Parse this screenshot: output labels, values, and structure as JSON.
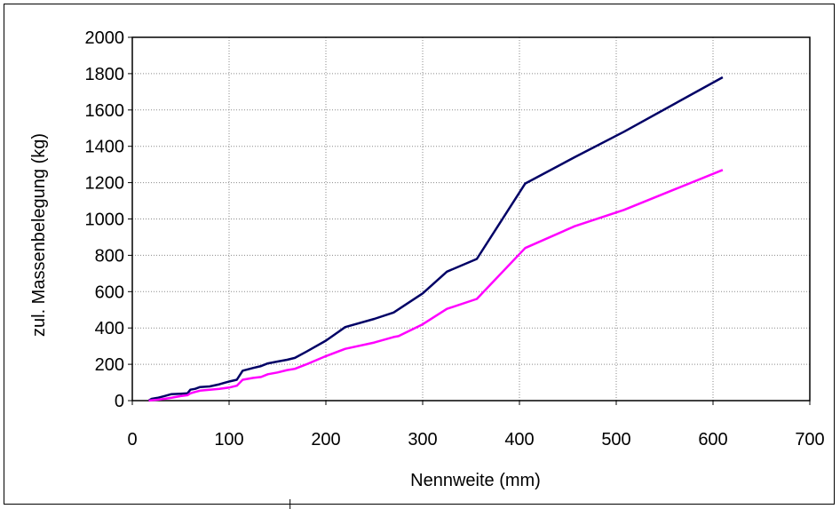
{
  "chart_data": {
    "type": "line",
    "title": "",
    "xlabel": "Nennweite (mm)",
    "ylabel": "zul. Massenbelegung (kg)",
    "xlim": [
      0,
      700
    ],
    "ylim": [
      0,
      2000
    ],
    "xticks": [
      0,
      100,
      200,
      300,
      400,
      500,
      600,
      700
    ],
    "yticks": [
      0,
      200,
      400,
      600,
      800,
      1000,
      1200,
      1400,
      1600,
      1800,
      2000
    ],
    "grid": true,
    "legend": "none",
    "series": [
      {
        "color": "#000066",
        "points": [
          [
            17,
            0
          ],
          [
            20,
            10
          ],
          [
            26,
            15
          ],
          [
            33,
            25
          ],
          [
            40,
            35
          ],
          [
            50,
            38
          ],
          [
            57,
            40
          ],
          [
            60,
            60
          ],
          [
            65,
            65
          ],
          [
            70,
            75
          ],
          [
            80,
            78
          ],
          [
            90,
            90
          ],
          [
            100,
            105
          ],
          [
            108,
            115
          ],
          [
            114,
            165
          ],
          [
            125,
            180
          ],
          [
            133,
            190
          ],
          [
            140,
            205
          ],
          [
            150,
            215
          ],
          [
            160,
            225
          ],
          [
            168,
            235
          ],
          [
            180,
            270
          ],
          [
            200,
            330
          ],
          [
            220,
            405
          ],
          [
            250,
            450
          ],
          [
            270,
            485
          ],
          [
            300,
            590
          ],
          [
            325,
            710
          ],
          [
            356,
            780
          ],
          [
            406,
            1195
          ],
          [
            457,
            1340
          ],
          [
            508,
            1480
          ],
          [
            610,
            1780
          ]
        ]
      },
      {
        "color": "#ff00ff",
        "points": [
          [
            17,
            0
          ],
          [
            20,
            2
          ],
          [
            26,
            5
          ],
          [
            33,
            10
          ],
          [
            40,
            15
          ],
          [
            50,
            25
          ],
          [
            57,
            30
          ],
          [
            60,
            40
          ],
          [
            65,
            48
          ],
          [
            70,
            55
          ],
          [
            80,
            60
          ],
          [
            90,
            65
          ],
          [
            100,
            72
          ],
          [
            108,
            82
          ],
          [
            114,
            115
          ],
          [
            125,
            125
          ],
          [
            133,
            130
          ],
          [
            140,
            145
          ],
          [
            150,
            155
          ],
          [
            160,
            168
          ],
          [
            168,
            175
          ],
          [
            180,
            200
          ],
          [
            200,
            245
          ],
          [
            220,
            285
          ],
          [
            250,
            320
          ],
          [
            270,
            350
          ],
          [
            275,
            355
          ],
          [
            300,
            420
          ],
          [
            325,
            505
          ],
          [
            356,
            560
          ],
          [
            406,
            840
          ],
          [
            457,
            960
          ],
          [
            508,
            1050
          ],
          [
            610,
            1270
          ]
        ]
      }
    ],
    "annotation_marker_x": 163
  }
}
